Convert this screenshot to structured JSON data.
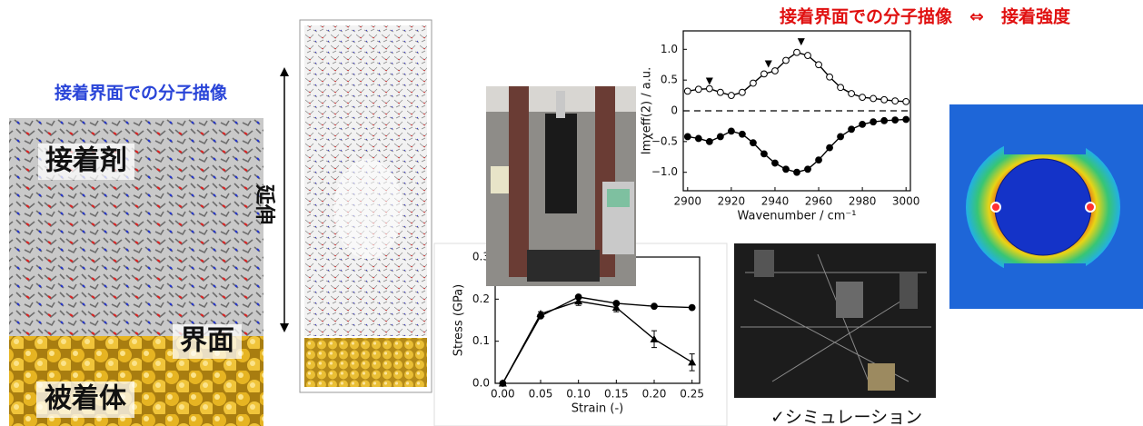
{
  "heading_left": "接着界面での分子描像",
  "heading_top": "接着界面での分子描像　⇔　接着強度",
  "labels": {
    "adhesive": "接着剤",
    "interface": "界面",
    "adherend": "被着体",
    "stretch": "延伸"
  },
  "caption": "✓シミュレーション",
  "chart_data": [
    {
      "type": "line",
      "xlabel": "Wavenumber / cm⁻¹",
      "ylabel": "Imχeff(2) / a.u.",
      "xlim": [
        2898,
        3002
      ],
      "ylim": [
        -1.3,
        1.3
      ],
      "xticks": [
        2900,
        2920,
        2940,
        2960,
        2980,
        3000
      ],
      "yticks": [
        {
          "value": 1,
          "label": "1.0"
        },
        0.5,
        0,
        {
          "value": -0.5,
          "label": "−0.5"
        },
        {
          "value": -1,
          "label": "−1.0"
        }
      ],
      "hline": 0,
      "x": [
        2900,
        2905,
        2910,
        2915,
        2920,
        2925,
        2930,
        2935,
        2940,
        2945,
        2950,
        2955,
        2960,
        2965,
        2970,
        2975,
        2980,
        2985,
        2990,
        2995,
        3000
      ],
      "series": [
        {
          "color": "#000000",
          "marker": "open-circle",
          "values": [
            0.32,
            0.35,
            0.36,
            0.3,
            0.25,
            0.3,
            0.45,
            0.6,
            0.65,
            0.82,
            0.95,
            0.9,
            0.75,
            0.55,
            0.38,
            0.28,
            0.22,
            0.2,
            0.18,
            0.16,
            0.15
          ]
        },
        {
          "color": "#000000",
          "marker": "circle",
          "values": [
            -0.42,
            -0.45,
            -0.5,
            -0.42,
            -0.33,
            -0.38,
            -0.52,
            -0.7,
            -0.85,
            -0.95,
            -1.0,
            -0.95,
            -0.8,
            -0.6,
            -0.42,
            -0.3,
            -0.22,
            -0.18,
            -0.16,
            -0.15,
            -0.14
          ]
        }
      ],
      "annotations": [
        {
          "x": 2910,
          "y": 0.48
        },
        {
          "x": 2937,
          "y": 0.76
        },
        {
          "x": 2952,
          "y": 1.12
        }
      ]
    },
    {
      "type": "line",
      "xlabel": "Strain (-)",
      "ylabel": "Stress (GPa)",
      "xlim": [
        -0.01,
        0.26
      ],
      "ylim": [
        0,
        0.3
      ],
      "xticks": [
        {
          "value": 0,
          "label": "0.00"
        },
        0.05,
        {
          "value": 0.1,
          "label": "0.10"
        },
        0.15,
        {
          "value": 0.2,
          "label": "0.20"
        },
        0.25
      ],
      "yticks": [
        {
          "value": 0,
          "label": "0.0"
        },
        0.1,
        0.2,
        0.3
      ],
      "x": [
        0,
        0.05,
        0.1,
        0.15,
        0.2,
        0.25
      ],
      "series": [
        {
          "color": "#000000",
          "marker": "circle",
          "values": [
            0,
            0.16,
            0.205,
            0.19,
            0.183,
            0.18
          ]
        },
        {
          "color": "#000000",
          "marker": "triangle",
          "values": [
            0,
            0.165,
            0.195,
            0.18,
            0.105,
            0.05
          ],
          "errors": [
            0,
            0.005,
            0.01,
            0.01,
            0.02,
            0.02
          ]
        }
      ]
    }
  ]
}
